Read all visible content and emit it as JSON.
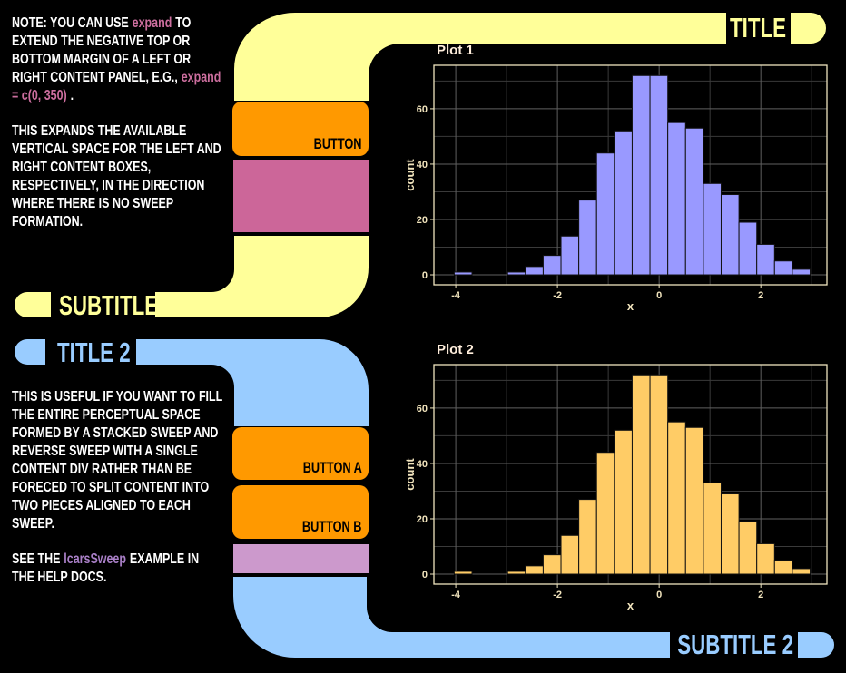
{
  "colors": {
    "background": "#000000",
    "yellow": "#FFFF99",
    "blue": "#99CCFF",
    "orange": "#FF9900",
    "pink": "#CC6699",
    "lavender": "#CC99CC",
    "note_text": "#FFFFFF",
    "code_pink": "#CC6E9E",
    "code_purple": "#AA80C8",
    "button_text": "#000000"
  },
  "header": {
    "title": "TITLE"
  },
  "yellow_section": {
    "subtitle": "SUBTITLE",
    "button": "BUTTON",
    "note": {
      "t1": "NOTE: YOU CAN USE",
      "c1": "expand",
      "t2": "TO EXTEND THE NEGATIVE TOP OR BOTTOM MARGIN OF A LEFT OR RIGHT CONTENT PANEL, E.G.,",
      "c2": "expand = c(0, 350)",
      "t3": ".",
      "p2": "THIS EXPANDS THE AVAILABLE VERTICAL SPACE FOR THE LEFT AND RIGHT CONTENT BOXES, RESPECTIVELY, IN THE DIRECTION WHERE THERE IS NO SWEEP FORMATION."
    }
  },
  "blue_section": {
    "title": "TITLE 2",
    "subtitle": "SUBTITLE 2",
    "button_a": "BUTTON A",
    "button_b": "BUTTON B",
    "note": {
      "p1": "THIS IS USEFUL IF YOU WANT TO FILL THE ENTIRE PERCEPTUAL SPACE FORMED BY A STACKED SWEEP AND REVERSE SWEEP WITH A SINGLE CONTENT DIV RATHER THAN BE FORECED TO SPLIT CONTENT INTO TWO PIECES ALIGNED TO EACH SWEEP.",
      "t1": "SEE THE",
      "c1": "lcarsSweep",
      "t2": "EXAMPLE IN THE HELP DOCS."
    }
  },
  "chart_data": [
    {
      "type": "bar",
      "title": "Plot 1",
      "xlabel": "x",
      "ylabel": "count",
      "bar_color": "#9999FF",
      "bar_edge": "#111111",
      "bin_start": -4.03,
      "bin_width": 0.35,
      "counts": [
        1,
        0,
        0,
        1,
        3,
        7,
        14,
        27,
        44,
        52,
        72,
        72,
        55,
        53,
        33,
        29,
        19,
        11,
        5,
        2
      ],
      "x_ticks": [
        -4,
        -2,
        0,
        2
      ],
      "y_ticks": [
        0,
        20,
        40,
        60
      ],
      "x_minor": [
        -3,
        -1,
        1,
        3
      ],
      "y_minor": [
        10,
        30,
        50,
        70
      ],
      "xlim": [
        -4.43,
        3.3
      ],
      "ylim": [
        -3.6,
        75.7
      ],
      "grid_major": "#5F5F5F",
      "grid_minor": "#3A3A3A",
      "frame_color": "#EFE5BF",
      "text_color": "#F0E3BC",
      "title_color": "#FFEEDC",
      "legend": "none"
    },
    {
      "type": "bar",
      "title": "Plot 2",
      "xlabel": "x",
      "ylabel": "count",
      "bar_color": "#FFCC66",
      "bar_edge": "#111111",
      "bin_start": -4.03,
      "bin_width": 0.35,
      "counts": [
        1,
        0,
        0,
        1,
        3,
        7,
        14,
        27,
        44,
        52,
        72,
        72,
        55,
        53,
        33,
        29,
        19,
        11,
        5,
        2
      ],
      "x_ticks": [
        -4,
        -2,
        0,
        2
      ],
      "y_ticks": [
        0,
        20,
        40,
        60
      ],
      "x_minor": [
        -3,
        -1,
        1,
        3
      ],
      "y_minor": [
        10,
        30,
        50,
        70
      ],
      "xlim": [
        -4.43,
        3.3
      ],
      "ylim": [
        -3.6,
        75.7
      ],
      "grid_major": "#5F5F5F",
      "grid_minor": "#3A3A3A",
      "frame_color": "#EFE5BF",
      "text_color": "#F0E3BC",
      "title_color": "#FFEEDC",
      "legend": "none"
    }
  ]
}
